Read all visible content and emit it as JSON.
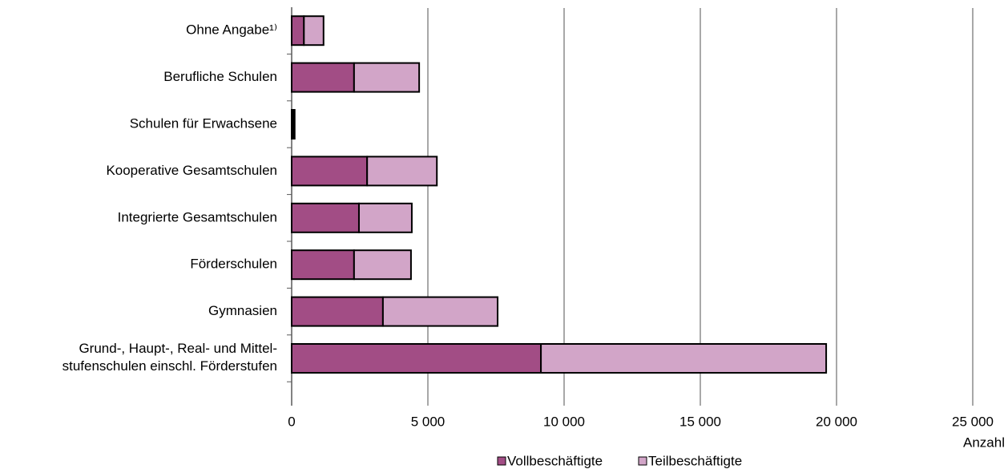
{
  "chart_data": {
    "type": "stacked-barh",
    "categories": [
      "Ohne Angabe¹⁾",
      "Berufliche Schulen",
      "Schulen für Erwachsene",
      "Kooperative Gesamtschulen",
      "Integrierte Gesamtschulen",
      "Förderschulen",
      "Gymnasien",
      "Grund-, Haupt-, Real- und Mittel-\nstufenschulen einschl. Förderstufen"
    ],
    "series": [
      {
        "name": "Vollbeschäftigte",
        "color": "#a24d85",
        "values": [
          450,
          2290,
          60,
          2770,
          2470,
          2290,
          3350,
          9150
        ]
      },
      {
        "name": "Teilbeschäftigte",
        "color": "#d2a5c8",
        "values": [
          720,
          2390,
          50,
          2560,
          1940,
          2090,
          4210,
          10470
        ]
      }
    ],
    "xlim": [
      0,
      25000
    ],
    "xticks": [
      0,
      {
        "value": 5000,
        "label": "5 000"
      },
      {
        "value": 10000,
        "label": "10 000"
      },
      {
        "value": 15000,
        "label": "15 000"
      },
      {
        "value": 20000,
        "label": "20 000"
      },
      {
        "value": 25000,
        "label": "25 000"
      }
    ],
    "xlabel": "Anzahl",
    "grid": true,
    "legend": "bottom"
  }
}
